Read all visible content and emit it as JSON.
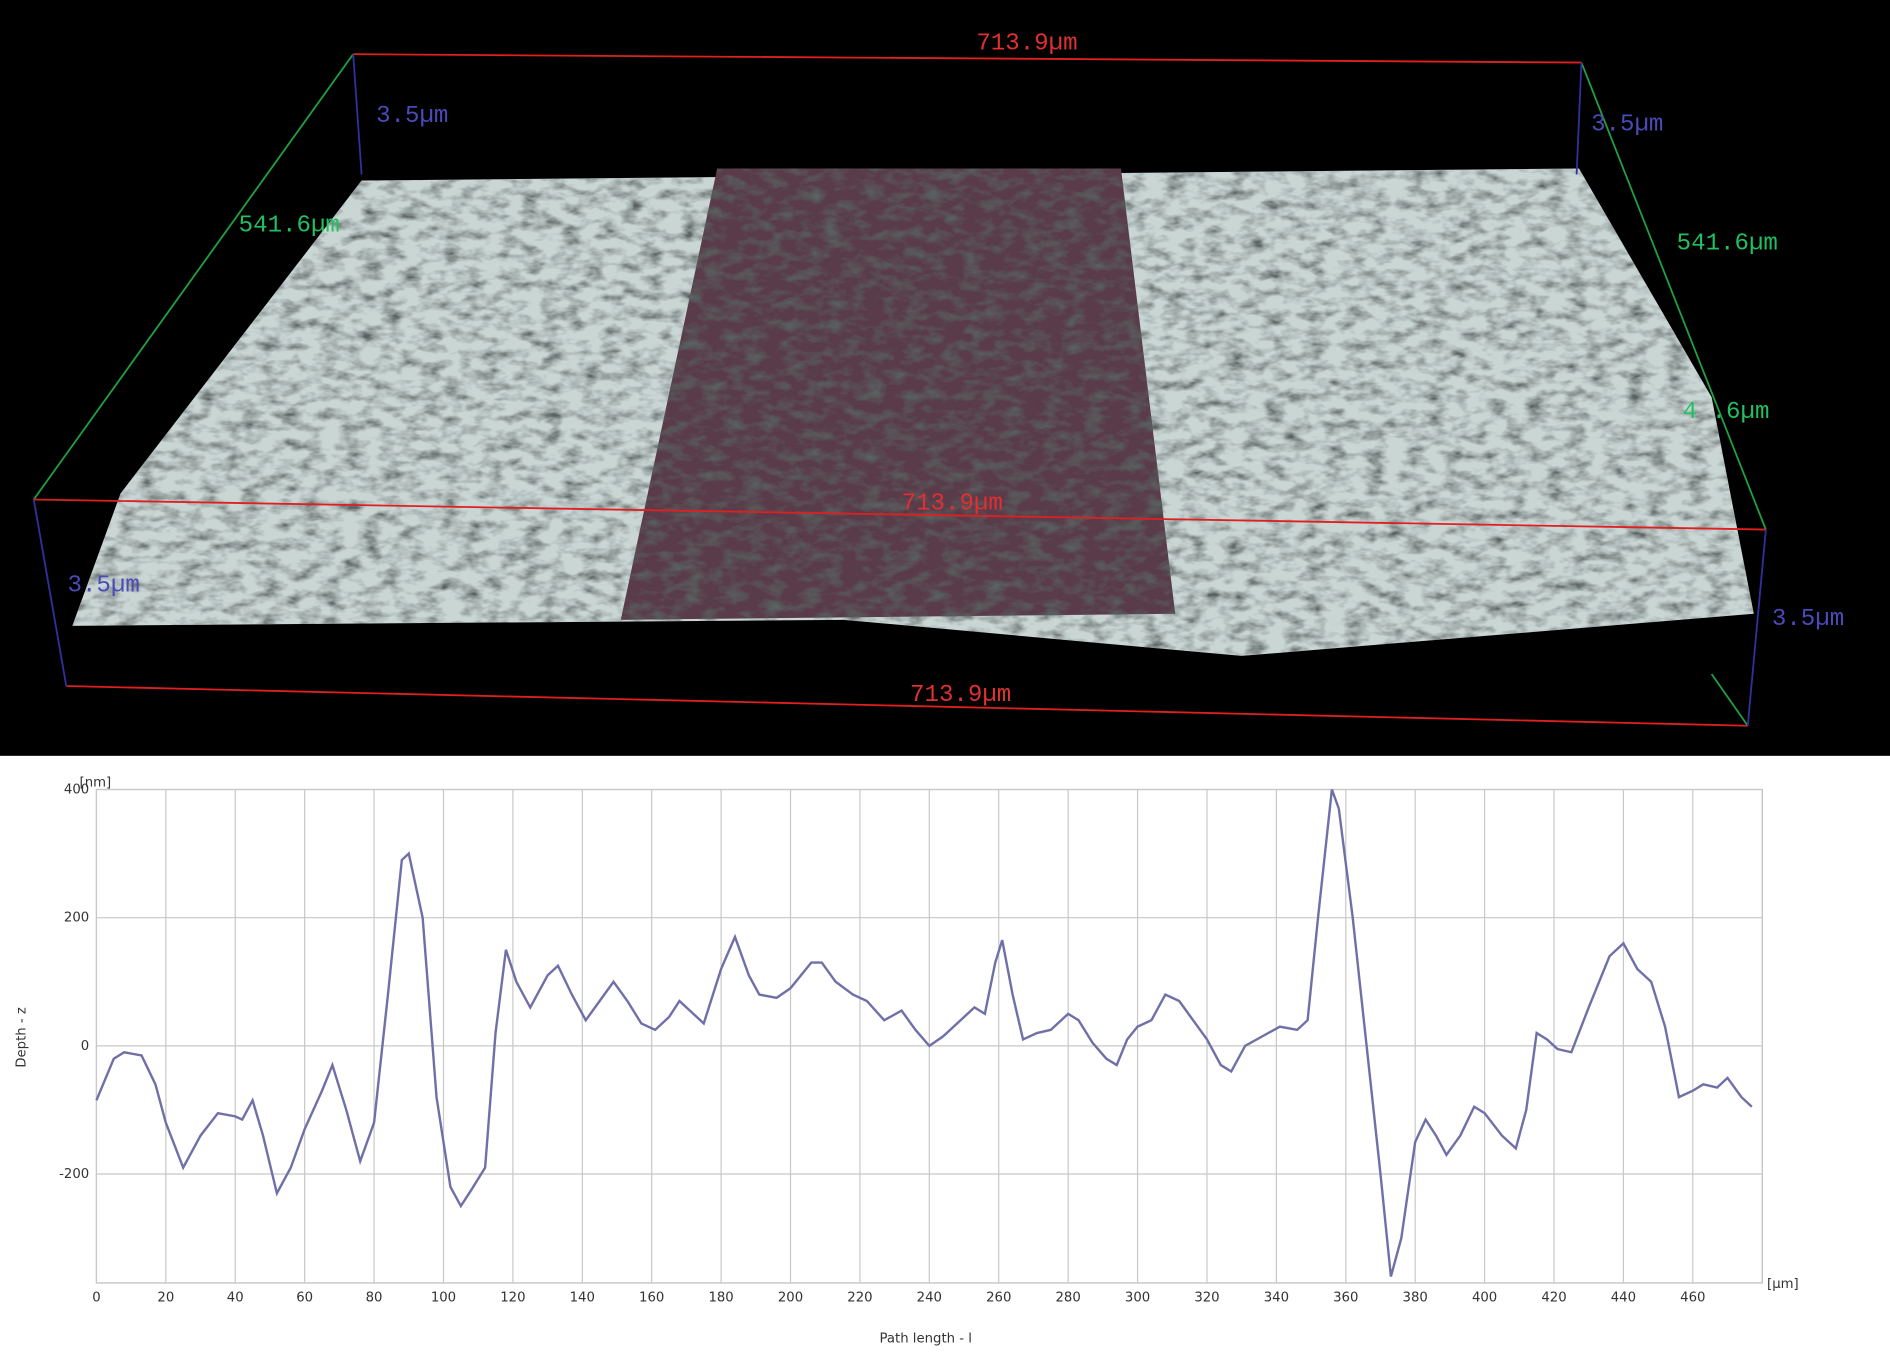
{
  "surface_labels": [
    "713.9µm",
    "713.9µm",
    "713.9µm",
    "541.6µm",
    "541.6µm",
    "4 .6µm",
    "3.5µm",
    "3.5µm",
    "3.5µm",
    "3.5µm"
  ],
  "chart_data": {
    "type": "line",
    "y_unit": "[nm]",
    "x_unit": "[µm]",
    "y_label": "Depth - z",
    "x_label": "Path length - l",
    "x": [
      0,
      5,
      8,
      13,
      17,
      20,
      25,
      30,
      35,
      40,
      42,
      45,
      48,
      52,
      56,
      60,
      65,
      68,
      72,
      76,
      80,
      84,
      88,
      90,
      94,
      98,
      102,
      105,
      108,
      112,
      115,
      118,
      121,
      125,
      130,
      133,
      137,
      141,
      145,
      149,
      153,
      157,
      161,
      165,
      168,
      171,
      175,
      180,
      184,
      188,
      191,
      196,
      200,
      206,
      209,
      213,
      218,
      222,
      227,
      232,
      236,
      240,
      244,
      249,
      253,
      256,
      259,
      261,
      264,
      267,
      271,
      275,
      280,
      283,
      287,
      291,
      294,
      297,
      300,
      304,
      308,
      312,
      316,
      320,
      324,
      327,
      331,
      336,
      341,
      346,
      349,
      352,
      356,
      358,
      362,
      366,
      370,
      373,
      376,
      380,
      383,
      386,
      389,
      393,
      397,
      400,
      405,
      409,
      412,
      415,
      418,
      421,
      425,
      430,
      436,
      440,
      444,
      448,
      452,
      456,
      460,
      463,
      467,
      470,
      474,
      477
    ],
    "series": [
      {
        "color": "#7070a8",
        "values": [
          -85,
          -20,
          -10,
          -15,
          -60,
          -120,
          -190,
          -140,
          -105,
          -110,
          -115,
          -85,
          -140,
          -230,
          -190,
          -130,
          -70,
          -30,
          -100,
          -180,
          -120,
          80,
          290,
          300,
          200,
          -80,
          -220,
          -250,
          -225,
          -190,
          20,
          150,
          100,
          60,
          110,
          125,
          80,
          40,
          70,
          100,
          70,
          35,
          25,
          45,
          70,
          55,
          35,
          120,
          170,
          110,
          80,
          75,
          90,
          130,
          130,
          100,
          80,
          70,
          40,
          55,
          25,
          0,
          15,
          40,
          60,
          50,
          130,
          165,
          80,
          10,
          20,
          25,
          50,
          40,
          5,
          -20,
          -30,
          10,
          30,
          40,
          80,
          70,
          40,
          10,
          -30,
          -40,
          0,
          15,
          30,
          25,
          40,
          200,
          400,
          370,
          200,
          0,
          -200,
          -360,
          -300,
          -150,
          -115,
          -140,
          -170,
          -140,
          -95,
          -105,
          -140,
          -160,
          -100,
          20,
          10,
          -5,
          -10,
          60,
          140,
          160,
          120,
          100,
          30,
          -80,
          -70,
          -60,
          -65,
          -50,
          -80,
          -95
        ]
      }
    ],
    "xlim": [
      0,
      480
    ],
    "ylim": [
      -370,
      400
    ],
    "xticks": [
      0,
      20,
      40,
      60,
      80,
      100,
      120,
      140,
      160,
      180,
      200,
      220,
      240,
      260,
      280,
      300,
      320,
      340,
      360,
      380,
      400,
      420,
      440,
      460
    ],
    "yticks": [
      -200,
      0,
      200,
      400
    ],
    "grid": true
  }
}
